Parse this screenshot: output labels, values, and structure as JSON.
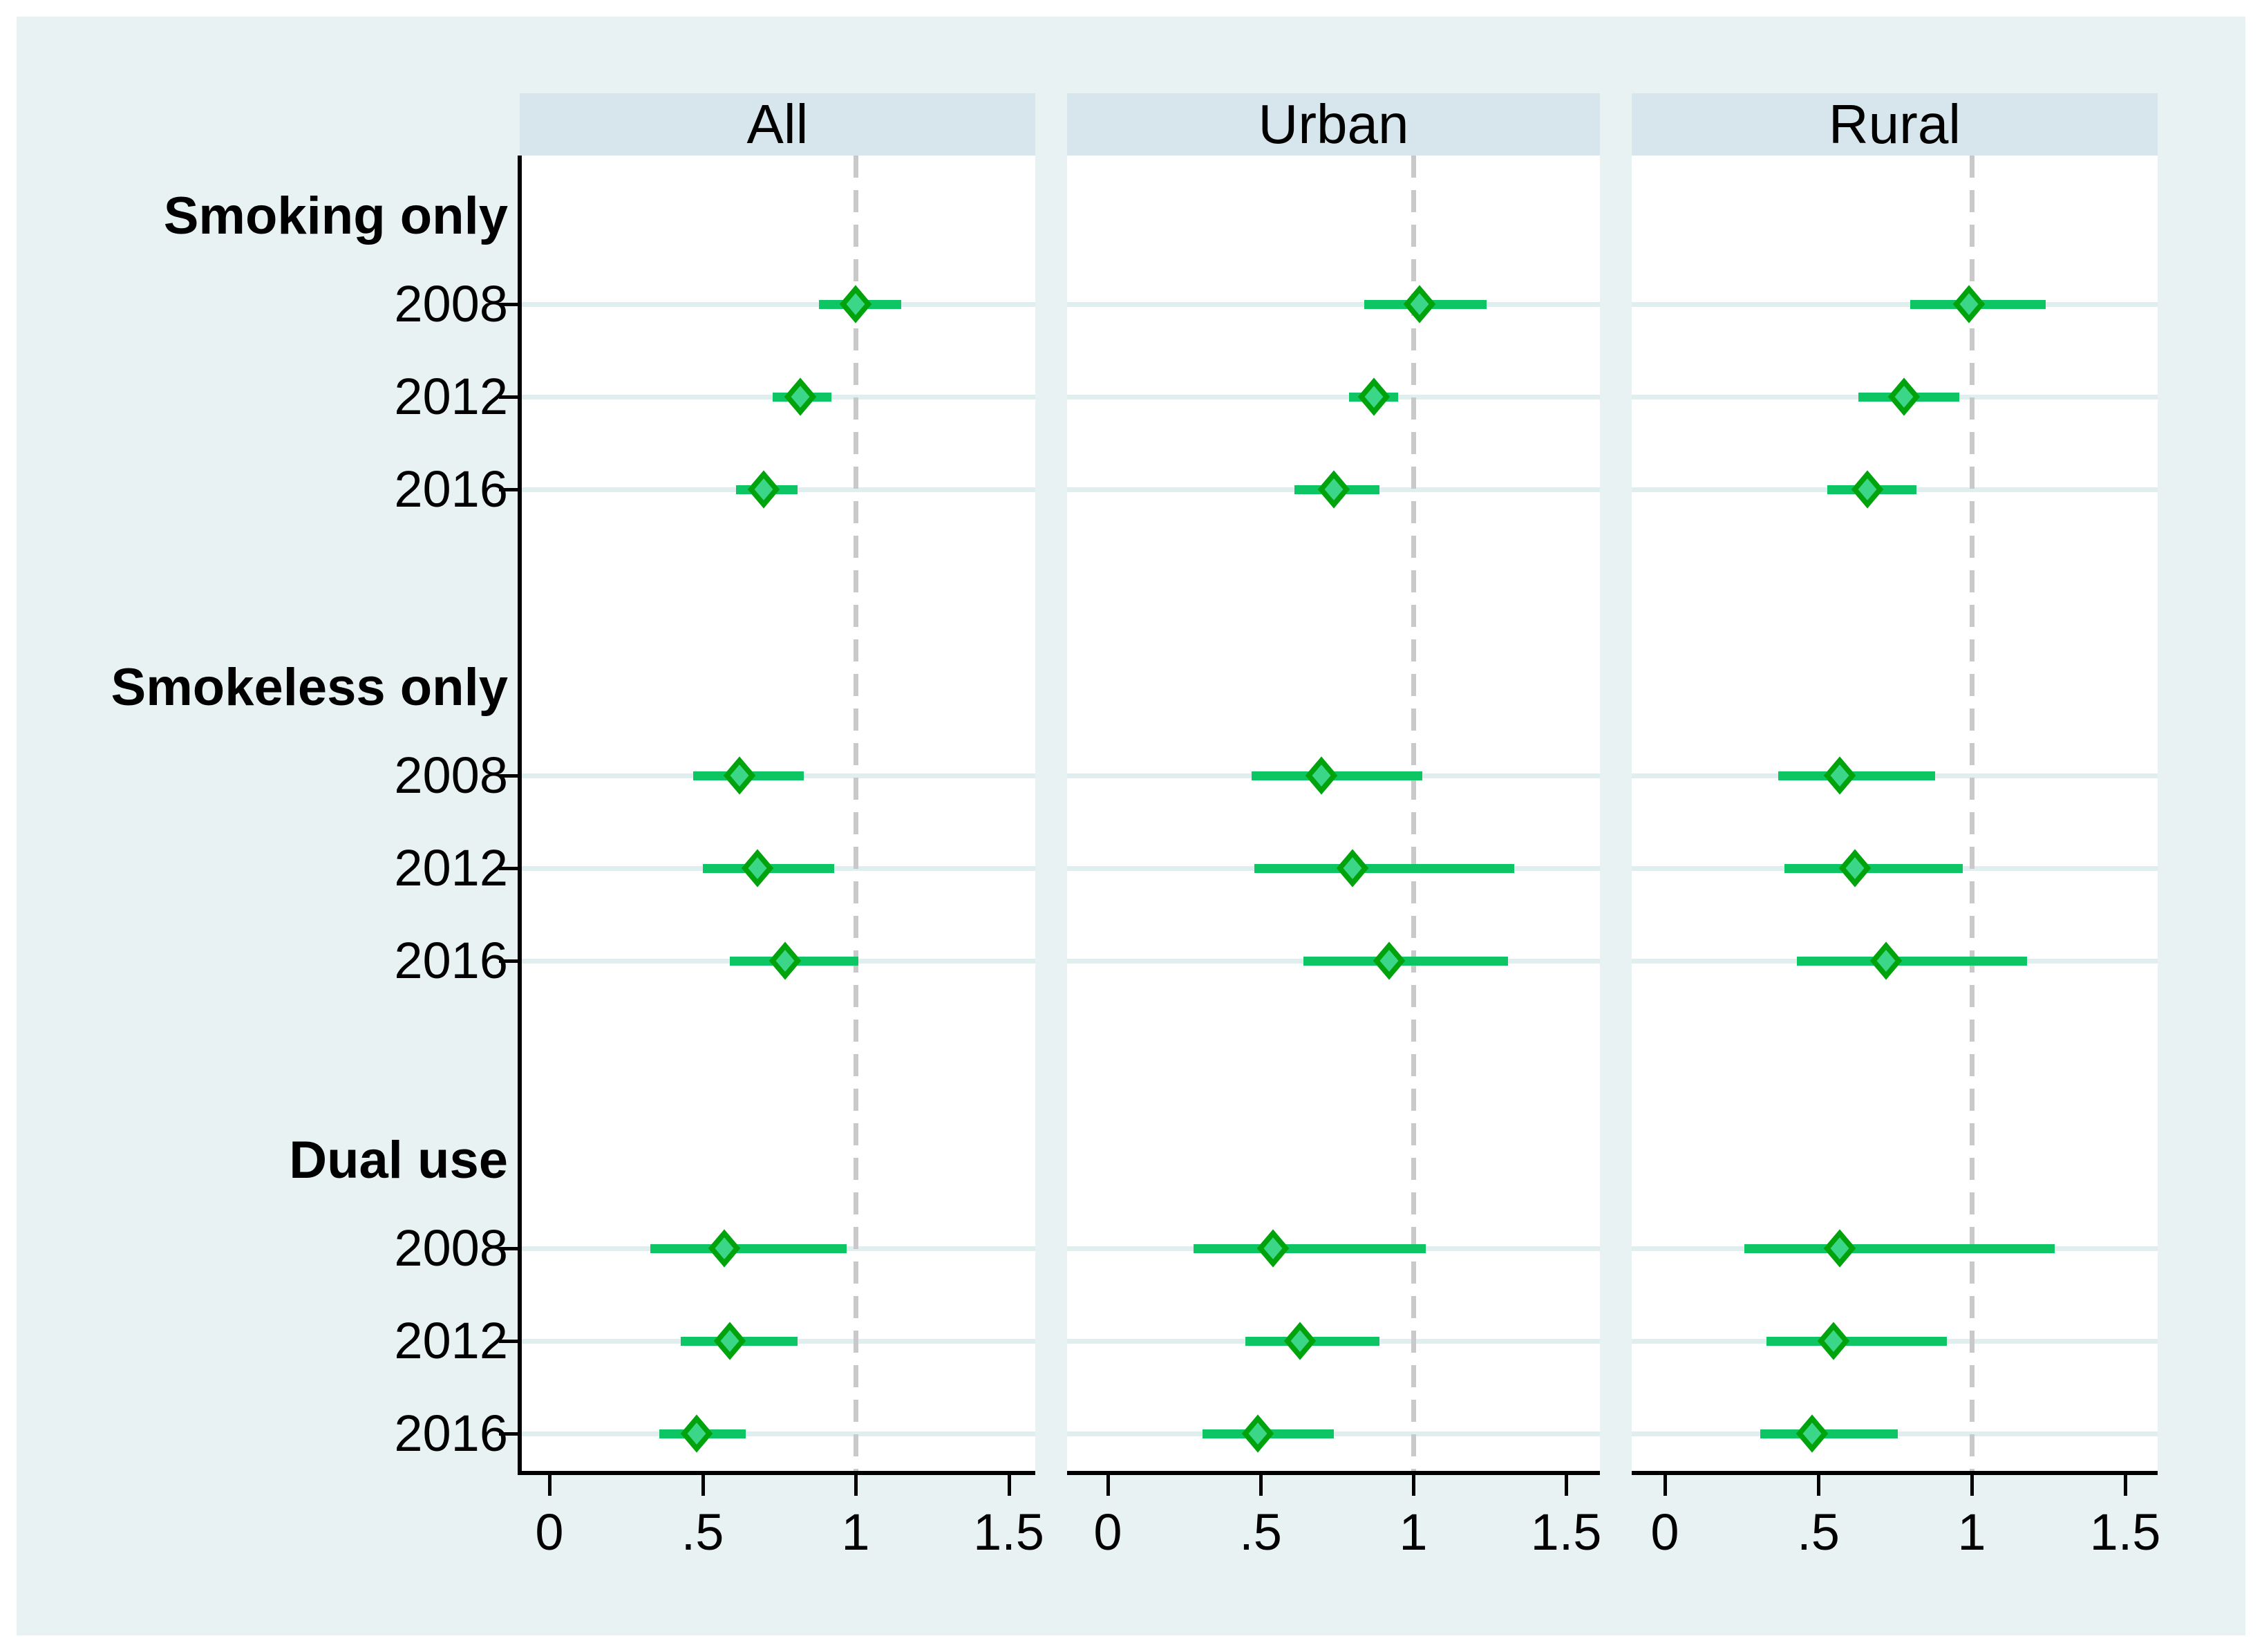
{
  "figure": {
    "colors": {
      "background": "#e8f2f2",
      "panel_header_bg": "#d7e5ed",
      "plot_bg": "#ffffff",
      "grid_line": "#dfeeef",
      "ref_line_dash": "#c9c9c9",
      "axis": "#000000",
      "ci_line": "#0ec564",
      "marker_fill": "#3bd687",
      "marker_border": "#00a30b",
      "text": "#000000"
    }
  },
  "chart_data": {
    "type": "scatter",
    "subtype": "forest-plot-three-panels",
    "title": "",
    "xlabel": "",
    "ylabel": "",
    "panels": [
      "All",
      "Urban",
      "Rural"
    ],
    "group_labels": [
      "Smoking only",
      "Smokeless only",
      "Dual use"
    ],
    "row_years": [
      "2008",
      "2012",
      "2016",
      "2008",
      "2012",
      "2016",
      "2008",
      "2012",
      "2016"
    ],
    "xticks": [
      "0",
      ".5",
      "1",
      "1.5"
    ],
    "xtick_values": [
      0,
      0.5,
      1,
      1.5
    ],
    "xlim": [
      -0.1,
      1.6
    ],
    "ref_line": 1,
    "grid": "horizontal-row-lines",
    "legend": "none",
    "series": [
      {
        "name": "All",
        "points": [
          {
            "group": "Smoking only",
            "year": "2008",
            "est": 1.0,
            "lo": 0.88,
            "hi": 1.15
          },
          {
            "group": "Smoking only",
            "year": "2012",
            "est": 0.82,
            "lo": 0.73,
            "hi": 0.92
          },
          {
            "group": "Smoking only",
            "year": "2016",
            "est": 0.7,
            "lo": 0.61,
            "hi": 0.81
          },
          {
            "group": "Smokeless only",
            "year": "2008",
            "est": 0.62,
            "lo": 0.47,
            "hi": 0.83
          },
          {
            "group": "Smokeless only",
            "year": "2012",
            "est": 0.68,
            "lo": 0.5,
            "hi": 0.93
          },
          {
            "group": "Smokeless only",
            "year": "2016",
            "est": 0.77,
            "lo": 0.59,
            "hi": 1.01
          },
          {
            "group": "Dual use",
            "year": "2008",
            "est": 0.57,
            "lo": 0.33,
            "hi": 0.97
          },
          {
            "group": "Dual use",
            "year": "2012",
            "est": 0.59,
            "lo": 0.43,
            "hi": 0.81
          },
          {
            "group": "Dual use",
            "year": "2016",
            "est": 0.48,
            "lo": 0.36,
            "hi": 0.64
          }
        ]
      },
      {
        "name": "Urban",
        "points": [
          {
            "group": "Smoking only",
            "year": "2008",
            "est": 1.02,
            "lo": 0.84,
            "hi": 1.24
          },
          {
            "group": "Smoking only",
            "year": "2012",
            "est": 0.87,
            "lo": 0.79,
            "hi": 0.95
          },
          {
            "group": "Smoking only",
            "year": "2016",
            "est": 0.74,
            "lo": 0.61,
            "hi": 0.89
          },
          {
            "group": "Smokeless only",
            "year": "2008",
            "est": 0.7,
            "lo": 0.47,
            "hi": 1.03
          },
          {
            "group": "Smokeless only",
            "year": "2012",
            "est": 0.8,
            "lo": 0.48,
            "hi": 1.33
          },
          {
            "group": "Smokeless only",
            "year": "2016",
            "est": 0.92,
            "lo": 0.64,
            "hi": 1.31
          },
          {
            "group": "Dual use",
            "year": "2008",
            "est": 0.54,
            "lo": 0.28,
            "hi": 1.04
          },
          {
            "group": "Dual use",
            "year": "2012",
            "est": 0.63,
            "lo": 0.45,
            "hi": 0.89
          },
          {
            "group": "Dual use",
            "year": "2016",
            "est": 0.49,
            "lo": 0.31,
            "hi": 0.74
          }
        ]
      },
      {
        "name": "Rural",
        "points": [
          {
            "group": "Smoking only",
            "year": "2008",
            "est": 0.99,
            "lo": 0.8,
            "hi": 1.24
          },
          {
            "group": "Smoking only",
            "year": "2012",
            "est": 0.78,
            "lo": 0.63,
            "hi": 0.96
          },
          {
            "group": "Smoking only",
            "year": "2016",
            "est": 0.66,
            "lo": 0.53,
            "hi": 0.82
          },
          {
            "group": "Smokeless only",
            "year": "2008",
            "est": 0.57,
            "lo": 0.37,
            "hi": 0.88
          },
          {
            "group": "Smokeless only",
            "year": "2012",
            "est": 0.62,
            "lo": 0.39,
            "hi": 0.97
          },
          {
            "group": "Smokeless only",
            "year": "2016",
            "est": 0.72,
            "lo": 0.43,
            "hi": 1.18
          },
          {
            "group": "Dual use",
            "year": "2008",
            "est": 0.57,
            "lo": 0.26,
            "hi": 1.27
          },
          {
            "group": "Dual use",
            "year": "2012",
            "est": 0.55,
            "lo": 0.33,
            "hi": 0.92
          },
          {
            "group": "Dual use",
            "year": "2016",
            "est": 0.48,
            "lo": 0.31,
            "hi": 0.76
          }
        ]
      }
    ]
  }
}
